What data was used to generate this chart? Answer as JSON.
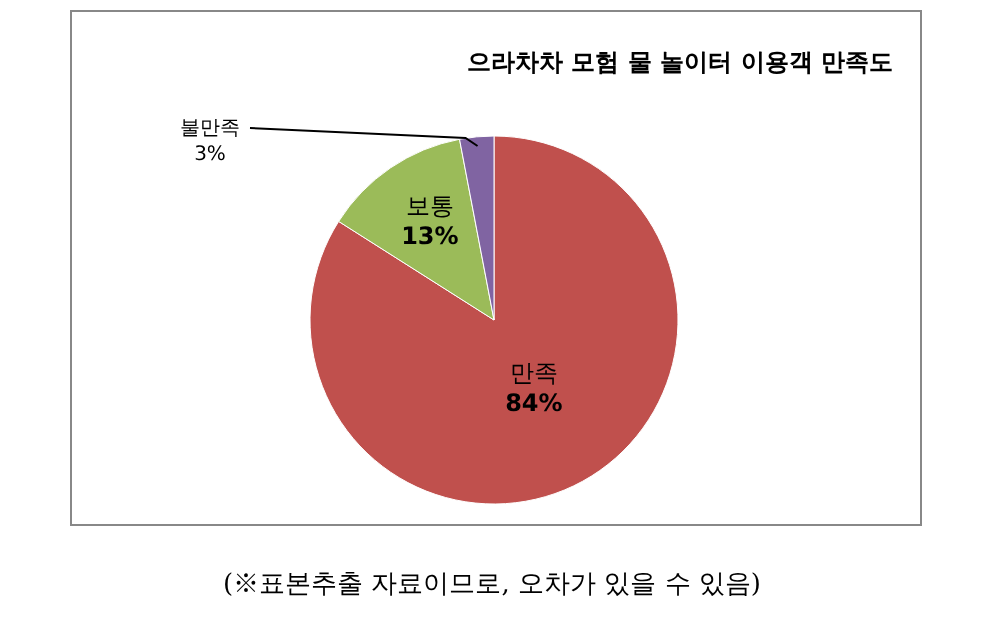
{
  "chart_data": {
    "type": "pie",
    "title": "으라차차 모험 물 놀이터 이용객 만족도",
    "categories": [
      "만족",
      "보통",
      "불만족"
    ],
    "values": [
      84,
      13,
      3
    ],
    "colors": [
      "#c0504d",
      "#9bbb59",
      "#8064a2"
    ],
    "value_labels": [
      "84%",
      "13%",
      "3%"
    ],
    "annotations": [
      "(※표본추출 자료이므로, 오차가 있을 수 있음)"
    ]
  }
}
